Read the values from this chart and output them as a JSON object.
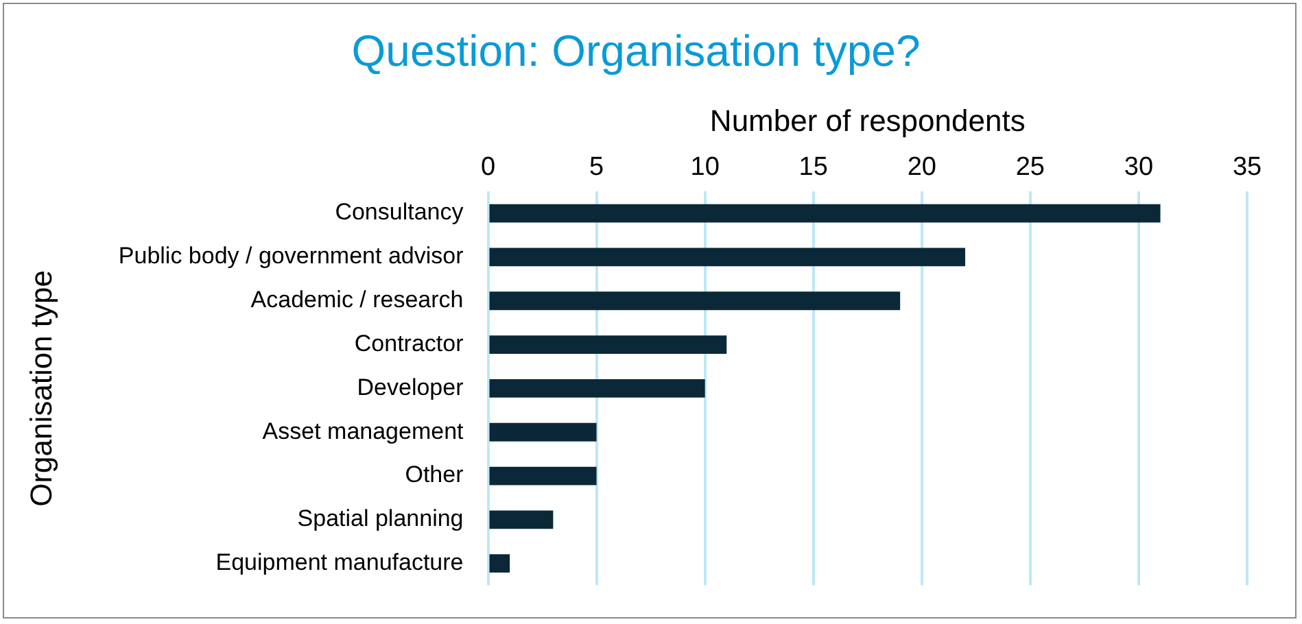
{
  "chart_data": {
    "type": "bar",
    "orientation": "horizontal",
    "title": "Question: Organisation type?",
    "xlabel": "Number of respondents",
    "ylabel": "Organisation type",
    "categories": [
      "Consultancy",
      "Public body / government advisor",
      "Academic / research",
      "Contractor",
      "Developer",
      "Asset management",
      "Other",
      "Spatial planning",
      "Equipment manufacture"
    ],
    "values": [
      31,
      22,
      19,
      11,
      10,
      5,
      5,
      3,
      1
    ],
    "color": "#0b2838",
    "xlim": [
      0,
      35
    ],
    "xticks": [
      0,
      5,
      10,
      15,
      20,
      25,
      30,
      35
    ],
    "grid": "x",
    "legend": false
  }
}
